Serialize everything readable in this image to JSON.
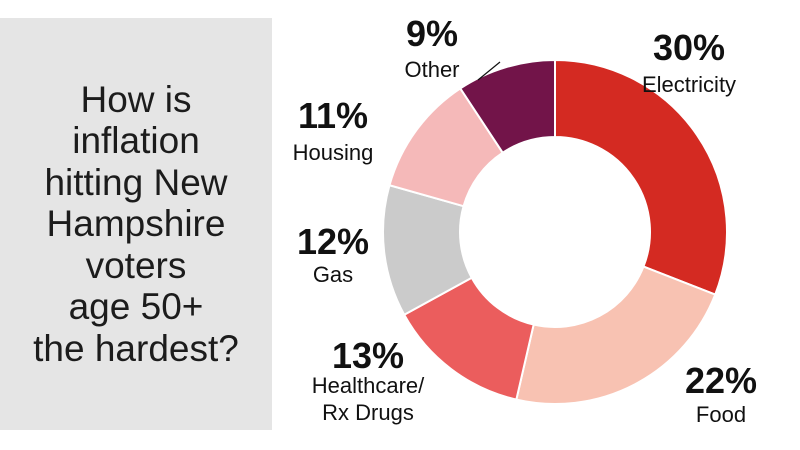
{
  "title_lines": [
    "How is",
    "inflation",
    "hitting New",
    "Hampshire",
    "voters",
    "age 50+",
    "the hardest?"
  ],
  "chart_data": {
    "type": "pie",
    "title": "How is inflation hitting New Hampshire voters age 50+ the hardest?",
    "slices": [
      {
        "label": "Electricity",
        "label_lines": [
          "Electricity"
        ],
        "value": 30,
        "value_label": "30%",
        "color": "#d42a22"
      },
      {
        "label": "Food",
        "label_lines": [
          "Food"
        ],
        "value": 22,
        "value_label": "22%",
        "color": "#f8c2b2"
      },
      {
        "label": "Healthcare/ Rx Drugs",
        "label_lines": [
          "Healthcare/",
          "Rx Drugs"
        ],
        "value": 13,
        "value_label": "13%",
        "color": "#eb5d5d"
      },
      {
        "label": "Gas",
        "label_lines": [
          "Gas"
        ],
        "value": 12,
        "value_label": "12%",
        "color": "#cbcbcb"
      },
      {
        "label": "Housing",
        "label_lines": [
          "Housing"
        ],
        "value": 11,
        "value_label": "11%",
        "color": "#f5b9b9"
      },
      {
        "label": "Other",
        "label_lines": [
          "Other"
        ],
        "value": 9,
        "value_label": "9%",
        "color": "#721449"
      }
    ],
    "donut": true
  }
}
